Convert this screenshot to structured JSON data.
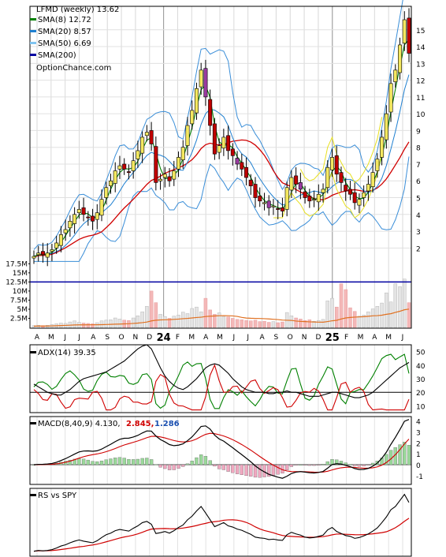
{
  "chart_data": [
    {
      "type": "candlestick",
      "title": "LFMD (weekly) 13.62",
      "watermark": "OptionChance.com",
      "price_axis": {
        "ticks": [
          2,
          3,
          4,
          5,
          6,
          7,
          8,
          9,
          10,
          11,
          12,
          13,
          14,
          15
        ],
        "range": [
          0.7,
          16.4
        ]
      },
      "x_labels": [
        "A",
        "M",
        "J",
        "J",
        "A",
        "S",
        "O",
        "N",
        "D",
        "24",
        "F",
        "M",
        "A",
        "M",
        "J",
        "J",
        "A",
        "S",
        "O",
        "N",
        "D",
        "25",
        "F",
        "M",
        "A",
        "M",
        "J"
      ],
      "legend": [
        {
          "label": "SMA(8) 12.72",
          "color": "#008000"
        },
        {
          "label": "SMA(20) 8.57",
          "color": "#1e7fd0"
        },
        {
          "label": "SMA(50) 6.69",
          "color": "#7fc4f0"
        },
        {
          "label": "SMA(200)",
          "color": "#0000a0"
        }
      ],
      "close": [
        1.5,
        1.7,
        1.6,
        1.7,
        1.9,
        2.3,
        2.8,
        3.1,
        3.6,
        4.0,
        4.3,
        4.0,
        3.8,
        3.6,
        4.1,
        4.9,
        5.6,
        6.0,
        6.6,
        6.9,
        6.7,
        6.5,
        7.2,
        7.8,
        8.6,
        8.9,
        8.2,
        5.9,
        6.1,
        6.4,
        6.0,
        6.6,
        7.4,
        8.0,
        9.3,
        10.2,
        11.5,
        12.6,
        11.0,
        9.3,
        7.6,
        8.1,
        8.6,
        7.8,
        7.5,
        7.0,
        6.7,
        6.2,
        5.7,
        5.0,
        4.8,
        4.7,
        4.4,
        4.5,
        4.3,
        4.2,
        5.6,
        6.2,
        5.8,
        5.5,
        5.0,
        4.8,
        4.9,
        5.2,
        5.5,
        6.8,
        7.4,
        6.4,
        5.9,
        5.4,
        5.2,
        4.7,
        4.9,
        5.3,
        5.8,
        6.5,
        7.3,
        8.6,
        10.0,
        11.8,
        12.6,
        14.1,
        15.6,
        13.6
      ],
      "volume_axis": {
        "ticks": [
          "2.5M",
          "5M",
          "7.5M",
          "10M",
          "12.5M",
          "15M",
          "17.5M"
        ],
        "range": [
          0,
          18
        ]
      },
      "volume": [
        0.5,
        0.6,
        0.5,
        0.6,
        0.8,
        1.0,
        1.2,
        1.1,
        1.5,
        1.8,
        1.4,
        1.2,
        1.1,
        1.0,
        1.3,
        1.8,
        2.0,
        2.1,
        2.6,
        2.3,
        2.0,
        1.9,
        2.6,
        3.2,
        4.3,
        5.8,
        10.0,
        6.8,
        3.6,
        3.0,
        2.5,
        3.1,
        3.4,
        4.2,
        3.8,
        5.2,
        5.6,
        4.3,
        8.0,
        4.8,
        3.6,
        4.0,
        3.0,
        2.9,
        2.5,
        2.2,
        2.1,
        1.9,
        1.8,
        2.0,
        1.6,
        1.7,
        1.4,
        1.6,
        1.3,
        1.5,
        4.1,
        3.2,
        2.6,
        2.3,
        1.9,
        2.1,
        1.7,
        1.9,
        2.2,
        7.3,
        8.0,
        5.6,
        12.0,
        10.4,
        5.4,
        4.4,
        3.1,
        3.4,
        4.3,
        5.1,
        5.8,
        6.7,
        9.5,
        7.0,
        12.0,
        11.2,
        13.3,
        6.8
      ],
      "volume_ma_level": 12.5
    },
    {
      "type": "line",
      "title": "ADX(14) 39.35",
      "y_ticks": [
        10,
        20,
        30,
        40,
        50
      ],
      "y_range": [
        5,
        55
      ],
      "reference_line": 20
    },
    {
      "type": "line",
      "title": "MACD(8,40,9) 4.130,",
      "signal_label": "2.845,",
      "histogram_label": "1.286",
      "y_ticks": [
        -1,
        0,
        1,
        2,
        3,
        4
      ],
      "y_range": [
        -1.8,
        4.4
      ]
    },
    {
      "type": "line",
      "title": "RS vs SPY"
    }
  ]
}
